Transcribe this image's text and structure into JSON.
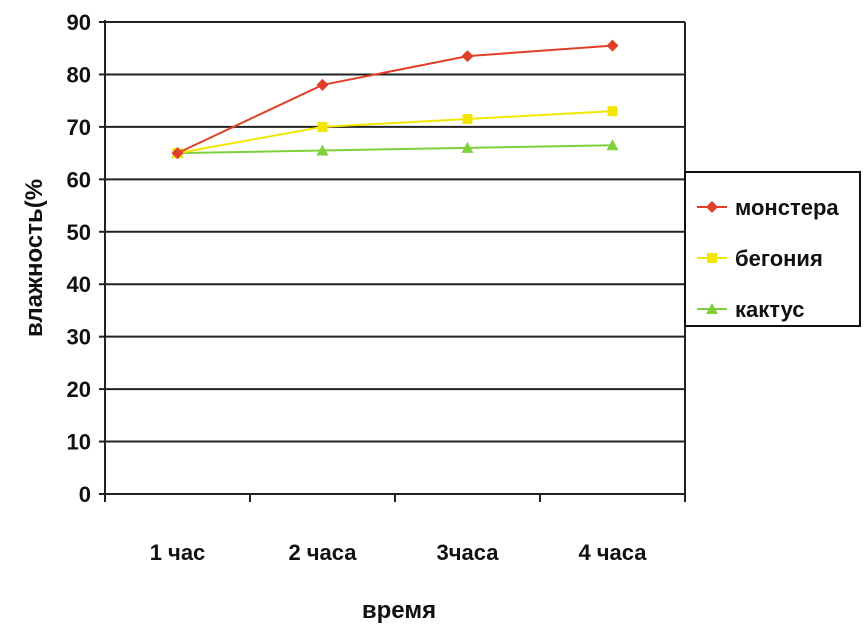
{
  "chart_data": {
    "type": "line",
    "title": "",
    "xlabel": "время",
    "ylabel": "влажность(%",
    "categories": [
      "1 час",
      "2 часа",
      "3часа",
      "4 часа"
    ],
    "series": [
      {
        "name": "монстера",
        "values": [
          65,
          78,
          83.5,
          85.5
        ],
        "color": "#e0402a",
        "marker": "diamond"
      },
      {
        "name": "бегония",
        "values": [
          65,
          70,
          71.5,
          73
        ],
        "color": "#f2e600",
        "marker": "square"
      },
      {
        "name": "кактус",
        "values": [
          65,
          65.5,
          66,
          66.5
        ],
        "color": "#7fd13b",
        "marker": "triangle"
      }
    ],
    "ylim": [
      0,
      90
    ],
    "yticks": [
      "0",
      "10",
      "20",
      "30",
      "40",
      "50",
      "60",
      "70",
      "80",
      "90"
    ],
    "grid": true,
    "legend": "right"
  }
}
